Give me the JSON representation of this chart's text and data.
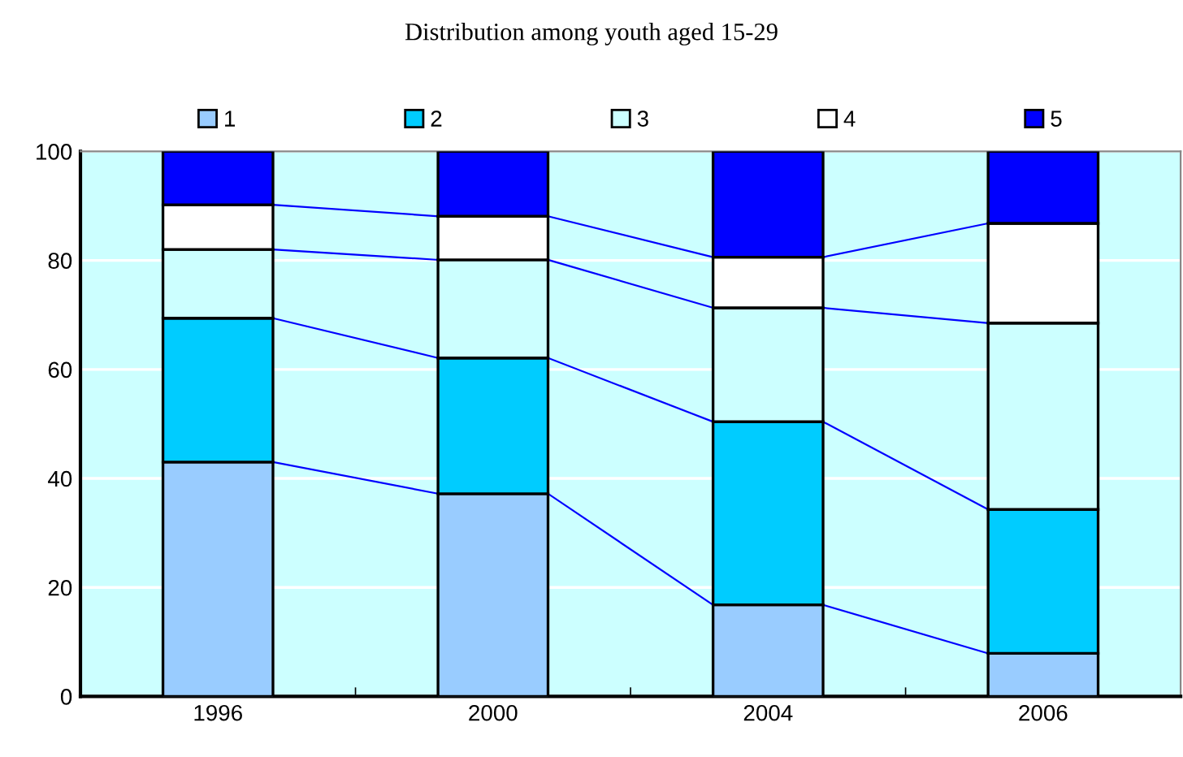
{
  "chart_data": {
    "type": "bar",
    "stacked": true,
    "title": "Distribution among youth aged 15-29",
    "categories": [
      "1996",
      "2000",
      "2004",
      "2006"
    ],
    "series": [
      {
        "name": "1",
        "color": "#99ccff",
        "values": [
          43.0,
          37.2,
          16.8,
          7.9
        ]
      },
      {
        "name": "2",
        "color": "#00ccff",
        "values": [
          26.4,
          24.9,
          33.6,
          26.4
        ]
      },
      {
        "name": "3",
        "color": "#ccffff",
        "values": [
          12.6,
          18.0,
          20.9,
          34.2
        ]
      },
      {
        "name": "4",
        "color": "#ffffff",
        "values": [
          8.2,
          8.0,
          9.3,
          18.3
        ]
      },
      {
        "name": "5",
        "color": "#0000ff",
        "values": [
          9.8,
          11.9,
          19.4,
          13.2
        ]
      }
    ],
    "ylim": [
      0,
      100
    ],
    "yticks": [
      0,
      20,
      40,
      60,
      80,
      100
    ],
    "grid": "y",
    "legend": "top"
  }
}
